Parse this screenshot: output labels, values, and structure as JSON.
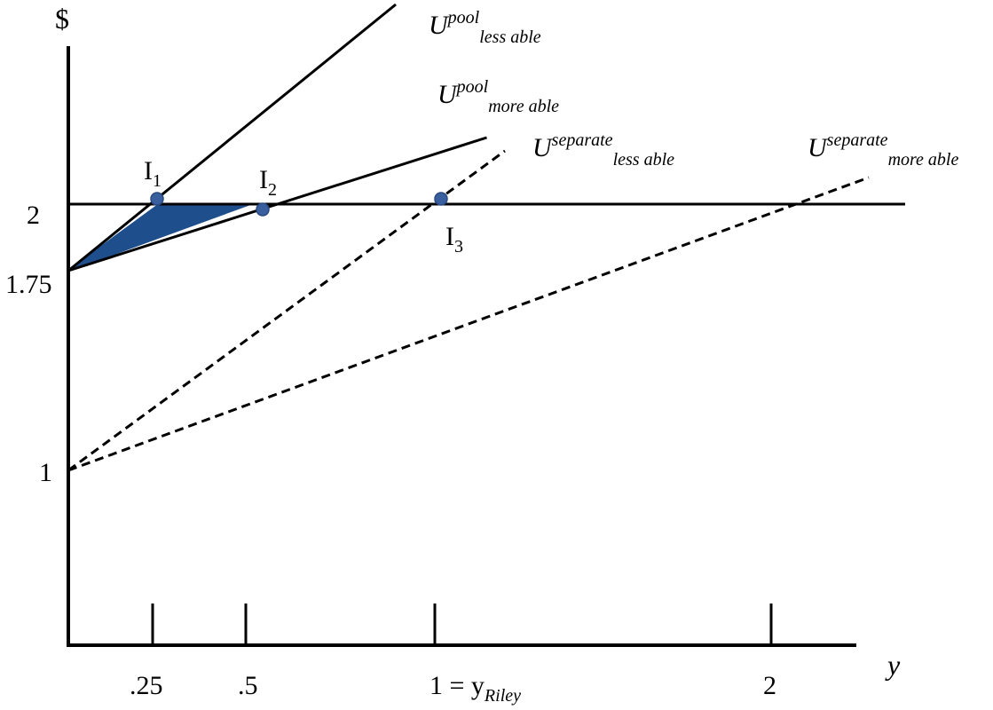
{
  "chart_data": {
    "type": "line",
    "title": "",
    "xlabel": "y",
    "ylabel": "$",
    "x_ticks": [
      ".25",
      ".5",
      "1 = y",
      "2"
    ],
    "x_tick_riley_sub": "Riley",
    "y_ticks": [
      "2",
      "1.75",
      "1"
    ],
    "series": [
      {
        "sup": "pool",
        "sub": "less able",
        "style": "solid",
        "x": [
          0,
          0.9
        ],
        "y": [
          1.75,
          2.75
        ]
      },
      {
        "sup": "pool",
        "sub": "more able",
        "style": "solid",
        "x": [
          0,
          1.15
        ],
        "y": [
          1.75,
          2.25
        ]
      },
      {
        "sup": "separate",
        "sub": "less able",
        "style": "dashed",
        "x": [
          0,
          1.2
        ],
        "y": [
          1,
          2.2
        ]
      },
      {
        "sup": "separate",
        "sub": "more able",
        "style": "dashed",
        "x": [
          0,
          2.2
        ],
        "y": [
          1,
          2.1
        ]
      },
      {
        "sup": "",
        "sub": "",
        "style": "solid",
        "x": [
          0,
          2.3
        ],
        "y": [
          2,
          2
        ]
      }
    ],
    "points": [
      {
        "label": "I",
        "sub": "1",
        "x": 0.25,
        "y": 2
      },
      {
        "label": "I",
        "sub": "2",
        "x": 0.5,
        "y": 2
      },
      {
        "label": "I",
        "sub": "3",
        "x": 1,
        "y": 2
      }
    ],
    "shaded_region": {
      "color": "#1F4E8C",
      "x": [
        0,
        0.25,
        0.5
      ],
      "y": [
        1.75,
        2,
        2
      ]
    },
    "series_letter": "U",
    "colors": {
      "line": "#000000",
      "point": "#3A5F9F",
      "fill": "#1F4E8C"
    }
  }
}
